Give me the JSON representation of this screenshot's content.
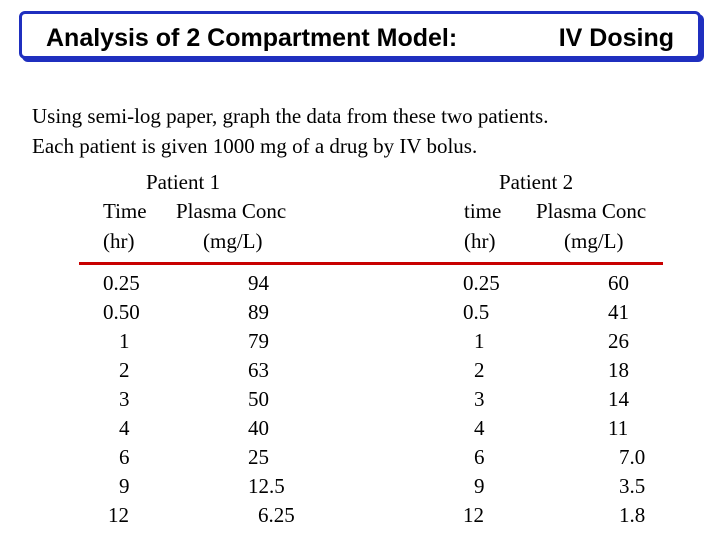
{
  "title": {
    "left": "Analysis of 2 Compartment Model:",
    "right": "IV Dosing"
  },
  "intro": [
    "Using semi-log paper, graph the data from these two patients.",
    "Each patient is given 1000 mg of a drug by IV bolus."
  ],
  "patient1": {
    "name": "Patient 1",
    "col_time": "Time",
    "col_conc": "Plasma Conc",
    "unit_time": "(hr)",
    "unit_conc": "(mg/L)",
    "time": [
      "0.25",
      "0.50",
      "1",
      "2",
      "3",
      "4",
      "6",
      "9",
      "12"
    ],
    "conc": [
      "94",
      "89",
      "79",
      "63",
      "50",
      "40",
      "25",
      "12.5",
      "6.25"
    ]
  },
  "patient2": {
    "name": "Patient 2",
    "col_time": "time",
    "col_conc": "Plasma Conc",
    "unit_time": "(hr)",
    "unit_conc": "(mg/L)",
    "time": [
      "0.25",
      "0.5",
      "1",
      "2",
      "3",
      "4",
      "6",
      "9",
      "12"
    ],
    "conc": [
      "60",
      "41",
      "26",
      "18",
      "14",
      "11",
      "7.0",
      "3.5",
      "1.8"
    ]
  }
}
